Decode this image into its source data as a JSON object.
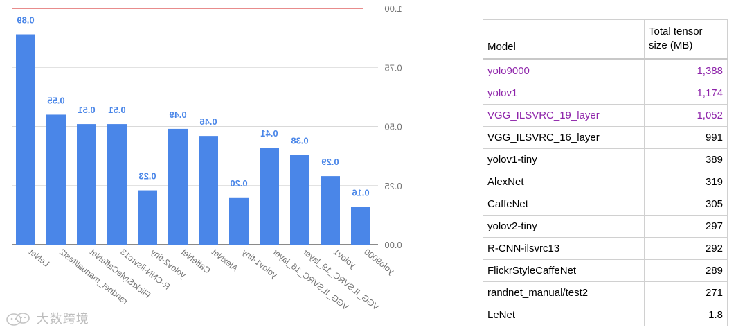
{
  "chart_data": {
    "type": "bar",
    "orientation": "mirrored",
    "categories": [
      "LeNet",
      "randnet_manual/test2",
      "FlickrStyleCaffeNet",
      "R-CNN-ilsvrc13",
      "yolov2-tiny",
      "CaffeNet",
      "AlexNet",
      "yolov1-tiny",
      "VGG_ILSVRC_16_layer",
      "VGG_ILSVRC_19_layer",
      "yolov1",
      "yolo9000"
    ],
    "values": [
      0.89,
      0.55,
      0.51,
      0.51,
      0.23,
      0.49,
      0.46,
      0.2,
      0.41,
      0.38,
      0.29,
      0.16
    ],
    "value_labels": [
      "0.89",
      "0.55",
      "0.51",
      "0.51",
      "0.23",
      "0.49",
      "0.46",
      "0.20",
      "0.41",
      "0.38",
      "0.29",
      "0.16"
    ],
    "y_ticks": [
      "1.00",
      "0.75",
      "0.50",
      "0.25",
      "0.00"
    ],
    "ylim": [
      0,
      1
    ],
    "reference_line": 1.0,
    "colors": {
      "bar": "#4a86e8",
      "label": "#4a86e8",
      "reference": "#e06666",
      "grid": "#d9d9d9",
      "axis_text": "#757575"
    },
    "grid": true,
    "title": "",
    "xlabel": "",
    "ylabel": ""
  },
  "table": {
    "headers": {
      "model": "Model",
      "size": "Total tensor size (MB)"
    },
    "rows": [
      {
        "model": "yolo9000",
        "size": "1,388",
        "highlight": true
      },
      {
        "model": "yolov1",
        "size": "1,174",
        "highlight": true
      },
      {
        "model": "VGG_ILSVRC_19_layer",
        "size": "1,052",
        "highlight": true
      },
      {
        "model": "VGG_ILSVRC_16_layer",
        "size": "991",
        "highlight": false
      },
      {
        "model": "yolov1-tiny",
        "size": "389",
        "highlight": false
      },
      {
        "model": "AlexNet",
        "size": "319",
        "highlight": false
      },
      {
        "model": "CaffeNet",
        "size": "305",
        "highlight": false
      },
      {
        "model": "yolov2-tiny",
        "size": "297",
        "highlight": false
      },
      {
        "model": "R-CNN-ilsvrc13",
        "size": "292",
        "highlight": false
      },
      {
        "model": "FlickrStyleCaffeNet",
        "size": "289",
        "highlight": false
      },
      {
        "model": "randnet_manual/test2",
        "size": "271",
        "highlight": false
      },
      {
        "model": "LeNet",
        "size": "1.8",
        "highlight": false
      }
    ],
    "highlight_color": "#8e24aa"
  },
  "watermark": {
    "text": "大数跨境",
    "icon": "wechat-logo-icon"
  }
}
